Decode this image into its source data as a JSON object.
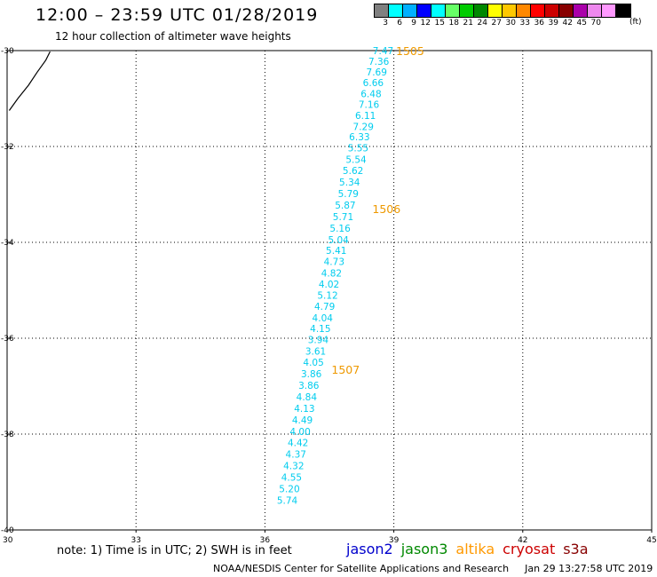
{
  "header": {
    "title": "12:00 – 23:59 UTC 01/28/2019",
    "subtitle": "12 hour collection of altimeter wave heights"
  },
  "legend": {
    "colors": [
      "#808080",
      "#00ffff",
      "#00b0ff",
      "#0000ff",
      "#00ffff",
      "#66ff66",
      "#00cc00",
      "#008800",
      "#ffff00",
      "#ffc800",
      "#ff8800",
      "#ff0000",
      "#cc0000",
      "#880000",
      "#aa00aa",
      "#ee88ee",
      "#ff99ff",
      "#000000"
    ],
    "labels": [
      "3",
      "6",
      "9",
      "12",
      "15",
      "18",
      "21",
      "24",
      "27",
      "30",
      "33",
      "36",
      "39",
      "42",
      "45",
      "70"
    ],
    "unit": "(ft)"
  },
  "map": {
    "lon_ticks": [
      "30",
      "33",
      "36",
      "39",
      "42",
      "45"
    ],
    "lat_ticks": [
      "-30",
      "-32",
      "-34",
      "-36",
      "-38",
      "-40"
    ],
    "lon_range": [
      30,
      45
    ],
    "lat_range": [
      -30,
      -40
    ],
    "track_color": "#00ccee",
    "track_points": [
      {
        "lat": -30.0,
        "lon": 38.75,
        "swh": "7.47"
      },
      {
        "lat": -30.22,
        "lon": 38.65,
        "swh": "7.36"
      },
      {
        "lat": -30.44,
        "lon": 38.6,
        "swh": "7.69"
      },
      {
        "lat": -30.67,
        "lon": 38.52,
        "swh": "6.66"
      },
      {
        "lat": -30.9,
        "lon": 38.47,
        "swh": "6.48"
      },
      {
        "lat": -31.12,
        "lon": 38.42,
        "swh": "7.16"
      },
      {
        "lat": -31.35,
        "lon": 38.34,
        "swh": "6.11"
      },
      {
        "lat": -31.58,
        "lon": 38.29,
        "swh": "7.29"
      },
      {
        "lat": -31.8,
        "lon": 38.2,
        "swh": "6.33"
      },
      {
        "lat": -32.03,
        "lon": 38.17,
        "swh": "5.55"
      },
      {
        "lat": -32.27,
        "lon": 38.12,
        "swh": "5.54"
      },
      {
        "lat": -32.5,
        "lon": 38.05,
        "swh": "5.62"
      },
      {
        "lat": -32.74,
        "lon": 37.97,
        "swh": "5.34"
      },
      {
        "lat": -32.98,
        "lon": 37.94,
        "swh": "5.79"
      },
      {
        "lat": -33.22,
        "lon": 37.87,
        "swh": "5.87"
      },
      {
        "lat": -33.46,
        "lon": 37.82,
        "swh": "5.71"
      },
      {
        "lat": -33.7,
        "lon": 37.75,
        "swh": "5.16"
      },
      {
        "lat": -33.94,
        "lon": 37.71,
        "swh": "5.04"
      },
      {
        "lat": -34.17,
        "lon": 37.66,
        "swh": "5.41"
      },
      {
        "lat": -34.4,
        "lon": 37.61,
        "swh": "4.73"
      },
      {
        "lat": -34.64,
        "lon": 37.55,
        "swh": "4.82"
      },
      {
        "lat": -34.87,
        "lon": 37.49,
        "swh": "4.02"
      },
      {
        "lat": -35.1,
        "lon": 37.46,
        "swh": "5.12"
      },
      {
        "lat": -35.33,
        "lon": 37.39,
        "swh": "4.79"
      },
      {
        "lat": -35.57,
        "lon": 37.34,
        "swh": "4.04"
      },
      {
        "lat": -35.8,
        "lon": 37.29,
        "swh": "4.15"
      },
      {
        "lat": -36.03,
        "lon": 37.24,
        "swh": "3.94"
      },
      {
        "lat": -36.27,
        "lon": 37.18,
        "swh": "3.61"
      },
      {
        "lat": -36.5,
        "lon": 37.13,
        "swh": "4.05"
      },
      {
        "lat": -36.74,
        "lon": 37.08,
        "swh": "3.86"
      },
      {
        "lat": -36.98,
        "lon": 37.02,
        "swh": "3.86"
      },
      {
        "lat": -37.22,
        "lon": 36.97,
        "swh": "4.84"
      },
      {
        "lat": -37.46,
        "lon": 36.92,
        "swh": "4.13"
      },
      {
        "lat": -37.7,
        "lon": 36.87,
        "swh": "4.49"
      },
      {
        "lat": -37.94,
        "lon": 36.82,
        "swh": "4.00"
      },
      {
        "lat": -38.18,
        "lon": 36.77,
        "swh": "4.42"
      },
      {
        "lat": -38.42,
        "lon": 36.72,
        "swh": "4.37"
      },
      {
        "lat": -38.66,
        "lon": 36.67,
        "swh": "4.32"
      },
      {
        "lat": -38.9,
        "lon": 36.62,
        "swh": "4.55"
      },
      {
        "lat": -39.14,
        "lon": 36.57,
        "swh": "5.20"
      },
      {
        "lat": -39.38,
        "lon": 36.52,
        "swh": "5.74"
      }
    ],
    "time_labels": [
      {
        "lat": -30.0,
        "lon": 39.05,
        "text": "1505"
      },
      {
        "lat": -33.3,
        "lon": 38.5,
        "text": "1506"
      },
      {
        "lat": -36.65,
        "lon": 37.55,
        "text": "1507"
      }
    ],
    "time_label_color": "#ee9900",
    "coastline": [
      [
        30.05,
        -31.25
      ],
      [
        30.25,
        -31.0
      ],
      [
        30.5,
        -30.72
      ],
      [
        30.7,
        -30.45
      ],
      [
        30.9,
        -30.2
      ],
      [
        31.0,
        -30.02
      ]
    ]
  },
  "footer": {
    "note": "note: 1) Time is in UTC; 2) SWH is in feet",
    "satellites": [
      {
        "name": "jason2",
        "color": "#0000cc"
      },
      {
        "name": "jason3",
        "color": "#008800"
      },
      {
        "name": "altika",
        "color": "#ff9900"
      },
      {
        "name": "cryosat",
        "color": "#cc0000"
      },
      {
        "name": "s3a",
        "color": "#880000"
      }
    ],
    "credit": "NOAA/NESDIS Center for Satellite Applications and Research",
    "timestamp": "Jan 29 13:27:58 UTC 2019"
  }
}
